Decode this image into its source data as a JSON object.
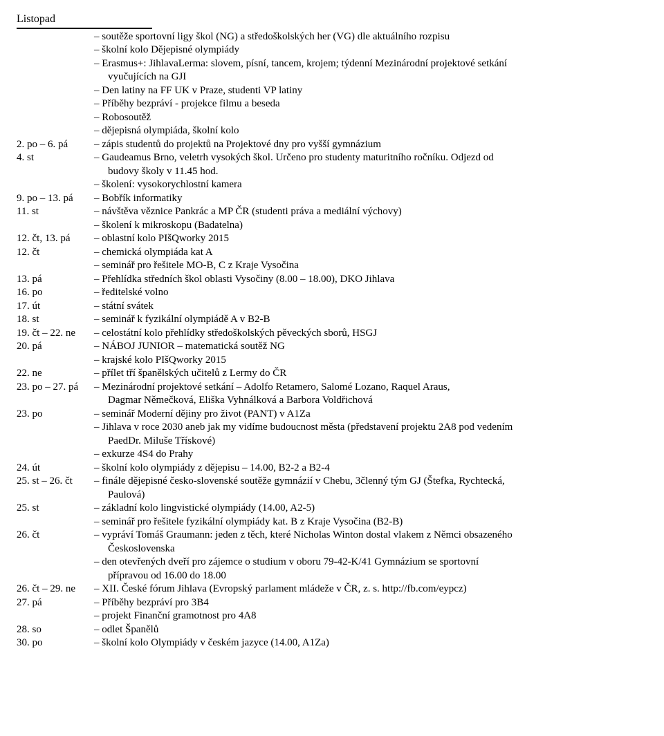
{
  "title": "Listopad",
  "entries": [
    {
      "date": "",
      "lines": [
        "– soutěže sportovní ligy škol (NG) a středoškolských her (VG) dle aktuálního rozpisu",
        "– školní kolo Dějepisné olympiády",
        "– Erasmus+: JihlavaLerma: slovem, písní, tancem, krojem; týdenní Mezinárodní projektové setkání"
      ],
      "cont": [
        "vyučujících na GJI"
      ]
    },
    {
      "date": "",
      "lines": [
        "– Den latiny na FF UK v Praze, studenti VP latiny",
        "– Příběhy bezpráví - projekce filmu a beseda",
        "– Robosoutěž",
        "– dějepisná olympiáda, školní kolo"
      ]
    },
    {
      "date": "2. po – 6. pá",
      "lines": [
        "– zápis studentů do projektů na Projektové dny pro vyšší gymnázium"
      ]
    },
    {
      "date": "4. st",
      "lines": [
        "– Gaudeamus Brno, veletrh vysokých škol. Určeno pro studenty maturitního ročníku. Odjezd od"
      ],
      "cont": [
        "budovy školy v 11.45 hod."
      ]
    },
    {
      "date": "",
      "lines": [
        "– školení: vysokorychlostní kamera"
      ]
    },
    {
      "date": "9. po – 13. pá",
      "lines": [
        "– Bobřík informatiky"
      ]
    },
    {
      "date": "11. st",
      "lines": [
        "– návštěva věznice Pankrác a MP ČR (studenti práva a mediální výchovy)",
        "– školení k mikroskopu (Badatelna)"
      ]
    },
    {
      "date": "12. čt, 13. pá",
      "lines": [
        "– oblastní kolo PIšQworky 2015"
      ]
    },
    {
      "date": "12. čt",
      "lines": [
        "– chemická olympiáda kat A",
        "– seminář pro řešitele MO-B, C z Kraje Vysočina"
      ]
    },
    {
      "date": "13. pá",
      "lines": [
        "– Přehlídka středních škol oblasti Vysočiny (8.00 – 18.00), DKO Jihlava"
      ]
    },
    {
      "date": "16. po",
      "lines": [
        "– ředitelské volno"
      ]
    },
    {
      "date": "17. út",
      "lines": [
        "– státní svátek"
      ]
    },
    {
      "date": "18. st",
      "lines": [
        "– seminář k fyzikální olympiádě A v B2-B"
      ]
    },
    {
      "date": "19. čt – 22. ne",
      "lines": [
        "– celostátní kolo přehlídky středoškolských pěveckých sborů, HSGJ"
      ]
    },
    {
      "date": "20. pá",
      "lines": [
        "– NÁBOJ JUNIOR – matematická soutěž NG",
        "– krajské kolo PIšQworky 2015"
      ]
    },
    {
      "date": "22. ne",
      "lines": [
        "– přílet tří španělských učitelů z Lermy do ČR"
      ]
    },
    {
      "date": "23. po – 27. pá",
      "lines": [
        "– Mezinárodní projektové setkání – Adolfo Retamero, Salomé Lozano, Raquel Araus,"
      ],
      "cont": [
        "Dagmar Němečková, Eliška Vyhnálková a Barbora Voldřichová"
      ]
    },
    {
      "date": "23. po",
      "lines": [
        "– seminář Moderní dějiny pro život (PANT) v A1Za",
        "– Jihlava v roce 2030 aneb jak my vidíme budoucnost města (představení projektu 2A8 pod vedením"
      ],
      "cont": [
        "PaedDr. Miluše Třískové)"
      ]
    },
    {
      "date": "",
      "lines": [
        "– exkurze 4S4 do Prahy"
      ]
    },
    {
      "date": "24. út",
      "lines": [
        "– školní kolo olympiády z dějepisu – 14.00, B2-2 a B2-4"
      ]
    },
    {
      "date": "25. st – 26. čt",
      "lines": [
        "– finále dějepisné česko-slovenské soutěže gymnázií v Chebu, 3členný tým GJ (Štefka, Rychtecká,"
      ],
      "cont": [
        "Paulová)"
      ]
    },
    {
      "date": "25. st",
      "lines": [
        "– základní kolo lingvistické olympiády (14.00, A2-5)",
        "– seminář pro řešitele fyzikální olympiády kat. B z Kraje Vysočina (B2-B)"
      ]
    },
    {
      "date": "26. čt",
      "lines": [
        "– vypráví Tomáš Graumann: jeden z těch, které Nicholas Winton dostal vlakem z Němci obsazeného"
      ],
      "cont": [
        "Československa"
      ]
    },
    {
      "date": "",
      "lines": [
        "– den otevřených dveří pro zájemce o studium v oboru 79-42-K/41 Gymnázium se sportovní"
      ],
      "cont": [
        "přípravou od 16.00 do 18.00"
      ]
    },
    {
      "date": "26. čt – 29. ne",
      "lines": [
        "– XII. České fórum Jihlava (Evropský parlament mládeže v ČR, z. s. http://fb.com/eypcz)"
      ]
    },
    {
      "date": "27. pá",
      "lines": [
        "– Příběhy bezpráví pro 3B4",
        "– projekt Finanční gramotnost pro 4A8"
      ]
    },
    {
      "date": "28. so",
      "lines": [
        "– odlet Španělů"
      ]
    },
    {
      "date": "30. po",
      "lines": [
        "– školní kolo Olympiády v českém jazyce (14.00, A1Za)"
      ]
    }
  ]
}
